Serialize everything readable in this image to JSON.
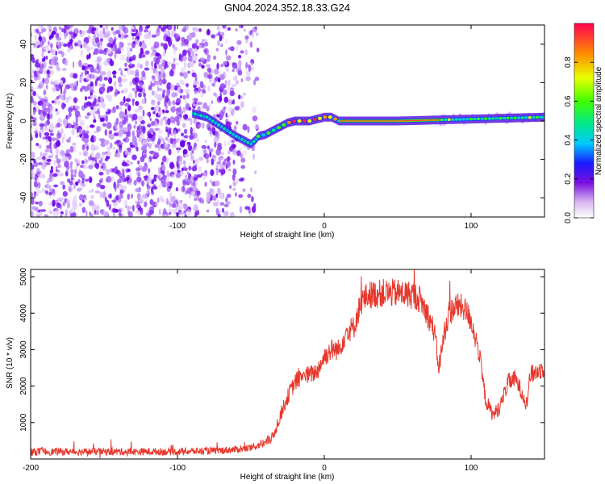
{
  "title": "GN04.2024.352.18.33.G24",
  "chart_data": [
    {
      "type": "heatmap",
      "xlabel": "Height of straight line (km)",
      "ylabel": "Frequency (Hz)",
      "xlim": [
        -200,
        150
      ],
      "ylim": [
        -50,
        50
      ],
      "xticks": [
        -200,
        -100,
        0,
        100
      ],
      "yticks": [
        -40,
        -20,
        0,
        20,
        40
      ],
      "colorbar": {
        "label": "Normalized spectral amplitude",
        "range": [
          0,
          1
        ],
        "ticks": [
          "0.0",
          "0.2",
          "0.4",
          "0.6",
          "0.8"
        ]
      },
      "ridge": {
        "x": [
          -90,
          -80,
          -70,
          -60,
          -50,
          -47,
          -45,
          -40,
          -35,
          -30,
          -25,
          -20,
          -15,
          -10,
          -5,
          0,
          5,
          10,
          50,
          100,
          150
        ],
        "y": [
          4,
          2,
          -3,
          -8,
          -12,
          -10,
          -8,
          -7,
          -5,
          -3,
          -1,
          0,
          0,
          0,
          1,
          2,
          2,
          0,
          0,
          1,
          2
        ]
      },
      "grid": false
    },
    {
      "type": "line",
      "xlabel": "Height of straight line (km)",
      "ylabel": "SNR (10 * v/v)",
      "xlim": [
        -200,
        150
      ],
      "ylim": [
        0,
        5200
      ],
      "xticks": [
        -200,
        -100,
        0,
        100
      ],
      "yticks": [
        1000,
        2000,
        3000,
        4000,
        5000
      ],
      "color": "#e8372c",
      "series": [
        {
          "x": [
            -200,
            -150,
            -100,
            -70,
            -50,
            -40,
            -35,
            -30,
            -25,
            -20,
            -15,
            -10,
            -5,
            0,
            5,
            10,
            15,
            20,
            25,
            30,
            40,
            50,
            60,
            65,
            70,
            75,
            78,
            82,
            85,
            90,
            95,
            100,
            105,
            110,
            115,
            120,
            125,
            130,
            135,
            138,
            140,
            145,
            150
          ],
          "y": [
            200,
            200,
            200,
            230,
            300,
            450,
            600,
            1200,
            1700,
            2100,
            2300,
            2300,
            2400,
            2800,
            3000,
            3000,
            3500,
            3600,
            4300,
            4500,
            4550,
            4550,
            4500,
            4400,
            4000,
            3500,
            2500,
            3500,
            4000,
            4200,
            4150,
            3800,
            3000,
            1600,
            1200,
            1450,
            2100,
            2200,
            1800,
            1500,
            2300,
            2400,
            2500
          ]
        }
      ],
      "grid": false
    }
  ]
}
